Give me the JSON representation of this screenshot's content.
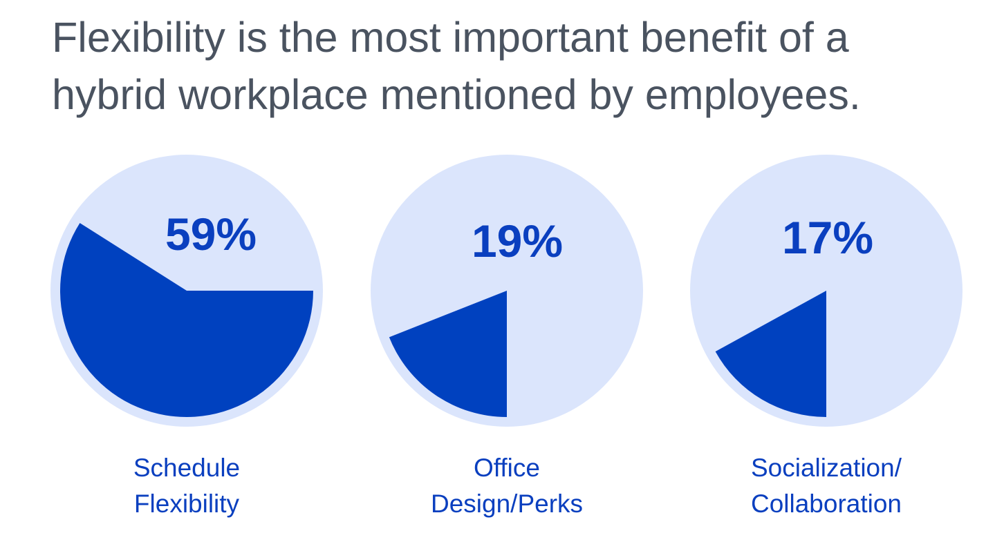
{
  "title": [
    "Flexibility is the most important benefit of a",
    "hybrid workplace mentioned by employees."
  ],
  "chart_data": [
    {
      "type": "pie",
      "values": [
        59
      ],
      "value_labels": [
        "59%"
      ],
      "label_lines": [
        "Schedule",
        "Flexibility"
      ],
      "color": "#0041bf",
      "background_color": "#dbe5fc"
    },
    {
      "type": "pie",
      "values": [
        19
      ],
      "value_labels": [
        "19%"
      ],
      "label_lines": [
        "Office",
        "Design/Perks"
      ],
      "color": "#0041bf",
      "background_color": "#dbe5fc"
    },
    {
      "type": "pie",
      "values": [
        17
      ],
      "value_labels": [
        "17%"
      ],
      "label_lines": [
        "Socialization/",
        "Collaboration"
      ],
      "color": "#0041bf",
      "background_color": "#dbe5fc"
    }
  ]
}
